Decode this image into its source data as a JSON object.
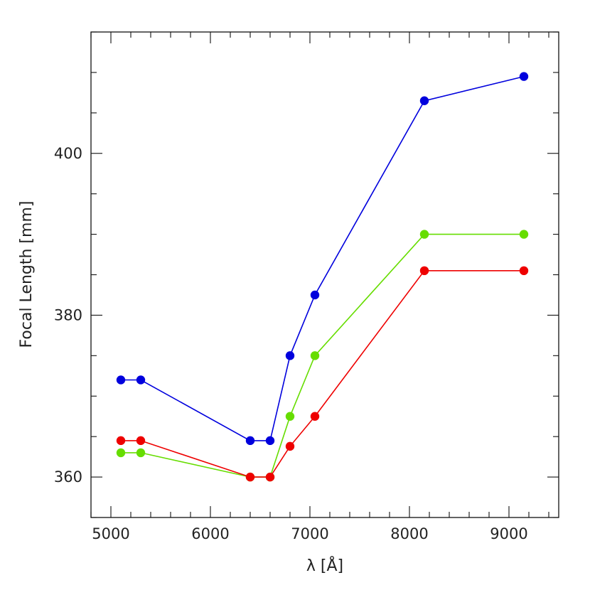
{
  "chart_data": {
    "type": "line",
    "xlabel": "λ [Å]",
    "ylabel": "Focal Length [mm]",
    "xlim": [
      4800,
      9500
    ],
    "ylim": [
      355,
      415
    ],
    "grid": false,
    "legend": "none",
    "x_ticks": [
      5000,
      6000,
      7000,
      8000,
      9000
    ],
    "y_ticks": [
      360,
      380,
      400
    ],
    "x": [
      5100,
      5300,
      6400,
      6600,
      6800,
      7050,
      8150,
      9150
    ],
    "series": [
      {
        "color": "#0000dd",
        "values": [
          372.0,
          372.0,
          364.5,
          364.5,
          375.0,
          382.5,
          406.5,
          409.5
        ]
      },
      {
        "color": "#66dd00",
        "values": [
          363.0,
          363.0,
          360.0,
          360.0,
          367.5,
          375.0,
          390.0,
          390.0
        ]
      },
      {
        "color": "#ee0000",
        "values": [
          364.5,
          364.5,
          360.0,
          360.0,
          363.8,
          367.5,
          385.5,
          385.5
        ]
      }
    ]
  }
}
